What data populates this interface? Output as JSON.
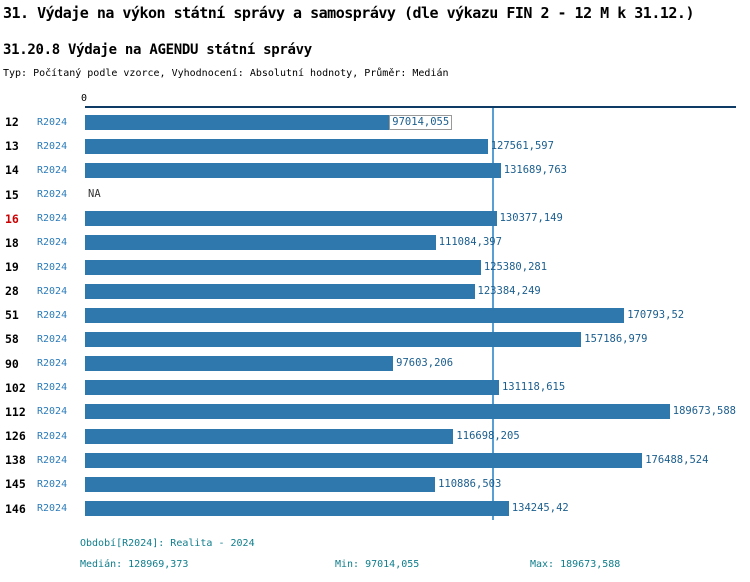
{
  "title": "31. Výdaje na výkon státní správy a samosprávy (dle výkazu FIN 2 - 12 M k 31.12.)",
  "subtitle": "31.20.8 Výdaje na AGENDU státní správy",
  "meta": "Typ: Počítaný podle vzorce, Vyhodnocení: Absolutní hodnoty, Průměr: Medián",
  "axis": {
    "zero_label": "0"
  },
  "chart_data": {
    "type": "bar",
    "orientation": "horizontal",
    "xlim": [
      0,
      206200
    ],
    "median": 128969.373,
    "series_label": "R2024",
    "rows": [
      {
        "id": "12",
        "period": "R2024",
        "value": 97014.055,
        "value_label": "97014,055",
        "highlight": false,
        "boxed": true
      },
      {
        "id": "13",
        "period": "R2024",
        "value": 127561.597,
        "value_label": "127561,597",
        "highlight": false,
        "boxed": false
      },
      {
        "id": "14",
        "period": "R2024",
        "value": 131689.763,
        "value_label": "131689,763",
        "highlight": false,
        "boxed": false
      },
      {
        "id": "15",
        "period": "R2024",
        "value": null,
        "value_label": "NA",
        "highlight": false,
        "boxed": false
      },
      {
        "id": "16",
        "period": "R2024",
        "value": 130377.149,
        "value_label": "130377,149",
        "highlight": true,
        "boxed": false
      },
      {
        "id": "18",
        "period": "R2024",
        "value": 111084.397,
        "value_label": "111084,397",
        "highlight": false,
        "boxed": false
      },
      {
        "id": "19",
        "period": "R2024",
        "value": 125380.281,
        "value_label": "125380,281",
        "highlight": false,
        "boxed": false
      },
      {
        "id": "28",
        "period": "R2024",
        "value": 123384.249,
        "value_label": "123384,249",
        "highlight": false,
        "boxed": false
      },
      {
        "id": "51",
        "period": "R2024",
        "value": 170793.52,
        "value_label": "170793,52",
        "highlight": false,
        "boxed": false
      },
      {
        "id": "58",
        "period": "R2024",
        "value": 157186.979,
        "value_label": "157186,979",
        "highlight": false,
        "boxed": false
      },
      {
        "id": "90",
        "period": "R2024",
        "value": 97603.206,
        "value_label": "97603,206",
        "highlight": false,
        "boxed": false
      },
      {
        "id": "102",
        "period": "R2024",
        "value": 131118.615,
        "value_label": "131118,615",
        "highlight": false,
        "boxed": false
      },
      {
        "id": "112",
        "period": "R2024",
        "value": 189673.588,
        "value_label": "189673,588",
        "highlight": false,
        "boxed": false
      },
      {
        "id": "126",
        "period": "R2024",
        "value": 116698.205,
        "value_label": "116698,205",
        "highlight": false,
        "boxed": false
      },
      {
        "id": "138",
        "period": "R2024",
        "value": 176488.524,
        "value_label": "176488,524",
        "highlight": false,
        "boxed": false
      },
      {
        "id": "145",
        "period": "R2024",
        "value": 110886.503,
        "value_label": "110886,503",
        "highlight": false,
        "boxed": false
      },
      {
        "id": "146",
        "period": "R2024",
        "value": 134245.42,
        "value_label": "134245,42",
        "highlight": false,
        "boxed": false
      }
    ]
  },
  "footer": {
    "period_line": "Období[R2024]: Realita - 2024",
    "median_label": "Medián: 128969,373",
    "min_label": "Min: 97014,055",
    "max_label": "Max: 189673,588"
  },
  "colors": {
    "bar": "#2e78ae",
    "median_line": "#5a9fd4",
    "axis": "#0d3b66",
    "value_text": "#1b5e8e",
    "period_text": "#2b7bb9",
    "footer_text": "#0f7e8c",
    "highlight": "#cc0000"
  }
}
